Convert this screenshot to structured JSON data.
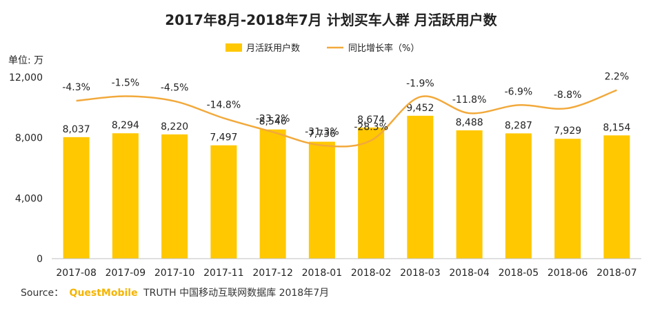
{
  "chart_data": {
    "type": "bar+line",
    "title": "2017年8月-2018年7月 计划买车人群 月活跃用户数",
    "unit_label": "单位: 万",
    "categories": [
      "2017-08",
      "2017-09",
      "2017-10",
      "2017-11",
      "2017-12",
      "2018-01",
      "2018-02",
      "2018-03",
      "2018-04",
      "2018-05",
      "2018-06",
      "2018-07"
    ],
    "series": [
      {
        "name": "月活跃用户数",
        "type": "bar",
        "values": [
          8037,
          8294,
          8220,
          7497,
          8546,
          7736,
          8674,
          9452,
          8488,
          8287,
          7929,
          8154
        ],
        "labels": [
          "8,037",
          "8,294",
          "8,220",
          "7,497",
          "8,546",
          "7,736",
          "8,674",
          "9,452",
          "8,488",
          "8,287",
          "7,929",
          "8,154"
        ]
      },
      {
        "name": "同比增长率（%）",
        "type": "line",
        "values": [
          -4.3,
          -1.5,
          -4.5,
          -14.8,
          -23.2,
          -31.3,
          -28.3,
          -1.9,
          -11.8,
          -6.9,
          -8.8,
          2.2
        ],
        "labels": [
          "-4.3%",
          "-1.5%",
          "-4.5%",
          "-14.8%",
          "-23.2%",
          "-31.3%",
          "-28.3%",
          "-1.9%",
          "-11.8%",
          "-6.9%",
          "-8.8%",
          "2.2%"
        ]
      }
    ],
    "y_ticks": [
      0,
      4000,
      8000,
      12000
    ],
    "y_tick_labels": [
      "0",
      "4,000",
      "8,000",
      "12,000"
    ],
    "ylim": [
      0,
      12000
    ],
    "line_ylim": [
      -100,
      10
    ],
    "legend_position": "top-center",
    "grid": false
  },
  "colors": {
    "bar": "#FFC800",
    "line": "#F2A93B",
    "axis": "#bfbfbf",
    "text": "#222222"
  },
  "source": {
    "prefix": "Source：",
    "brand": "QuestMobile",
    "suffix": "TRUTH 中国移动互联网数据库 2018年7月"
  }
}
